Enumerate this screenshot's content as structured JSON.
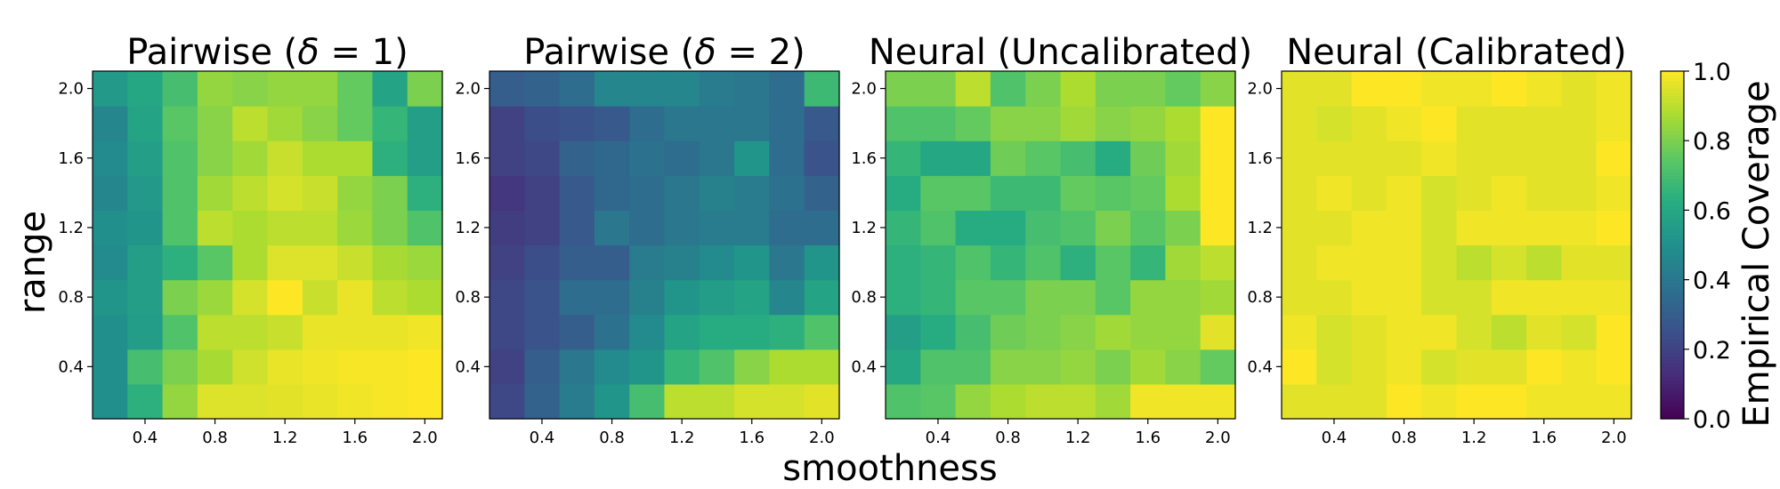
{
  "chart_data": {
    "type": "heatmap",
    "xlabel": "smoothness",
    "ylabel": "range",
    "x_ticks": [
      "0.4",
      "0.8",
      "1.2",
      "1.6",
      "2.0"
    ],
    "y_ticks": [
      "0.4",
      "0.8",
      "1.2",
      "1.6",
      "2.0"
    ],
    "grid_x": [
      0.2,
      0.4,
      0.6,
      0.8,
      1.0,
      1.2,
      1.4,
      1.6,
      1.8,
      2.0
    ],
    "grid_y": [
      0.2,
      0.4,
      0.6,
      0.8,
      1.0,
      1.2,
      1.4,
      1.6,
      1.8,
      2.0
    ],
    "colormap": "viridis",
    "colorbar": {
      "label": "Empirical Coverage",
      "range": [
        0,
        1
      ],
      "ticks": [
        "0.0",
        "0.2",
        "0.4",
        "0.6",
        "0.8",
        "1.0"
      ]
    },
    "panels": [
      {
        "title": "Pairwise (δ = 1)",
        "title_main": "Pairwise (",
        "title_symbol": "δ",
        "title_rest": " = 1)",
        "values": [
          [
            0.5,
            0.64,
            0.84,
            0.95,
            0.95,
            0.96,
            0.97,
            0.98,
            0.99,
            1.0
          ],
          [
            0.5,
            0.7,
            0.8,
            0.87,
            0.93,
            0.97,
            0.98,
            0.99,
            0.99,
            1.0
          ],
          [
            0.5,
            0.55,
            0.72,
            0.9,
            0.9,
            0.92,
            0.97,
            0.97,
            0.97,
            0.98
          ],
          [
            0.52,
            0.56,
            0.8,
            0.85,
            0.94,
            1.0,
            0.92,
            0.97,
            0.9,
            0.88
          ],
          [
            0.48,
            0.56,
            0.64,
            0.74,
            0.88,
            0.95,
            0.95,
            0.92,
            0.87,
            0.85
          ],
          [
            0.5,
            0.52,
            0.72,
            0.9,
            0.88,
            0.9,
            0.9,
            0.85,
            0.8,
            0.72
          ],
          [
            0.46,
            0.54,
            0.72,
            0.86,
            0.9,
            0.94,
            0.92,
            0.84,
            0.8,
            0.64
          ],
          [
            0.48,
            0.56,
            0.72,
            0.82,
            0.86,
            0.92,
            0.88,
            0.88,
            0.64,
            0.56
          ],
          [
            0.46,
            0.58,
            0.74,
            0.82,
            0.9,
            0.86,
            0.82,
            0.76,
            0.66,
            0.56
          ],
          [
            0.54,
            0.6,
            0.7,
            0.84,
            0.82,
            0.84,
            0.84,
            0.76,
            0.58,
            0.8
          ]
        ]
      },
      {
        "title": "Pairwise (δ = 2)",
        "title_main": "Pairwise (",
        "title_symbol": "δ",
        "title_rest": " = 2)",
        "values": [
          [
            0.22,
            0.32,
            0.42,
            0.52,
            0.7,
            0.9,
            0.9,
            0.94,
            0.94,
            0.96
          ],
          [
            0.2,
            0.3,
            0.4,
            0.48,
            0.52,
            0.66,
            0.72,
            0.82,
            0.88,
            0.88
          ],
          [
            0.22,
            0.26,
            0.3,
            0.38,
            0.48,
            0.58,
            0.62,
            0.62,
            0.64,
            0.72
          ],
          [
            0.22,
            0.26,
            0.36,
            0.36,
            0.44,
            0.52,
            0.55,
            0.58,
            0.46,
            0.58
          ],
          [
            0.2,
            0.24,
            0.3,
            0.3,
            0.42,
            0.44,
            0.48,
            0.52,
            0.4,
            0.52
          ],
          [
            0.18,
            0.2,
            0.28,
            0.4,
            0.36,
            0.4,
            0.42,
            0.42,
            0.36,
            0.36
          ],
          [
            0.16,
            0.2,
            0.28,
            0.34,
            0.36,
            0.4,
            0.44,
            0.42,
            0.38,
            0.32
          ],
          [
            0.2,
            0.22,
            0.32,
            0.34,
            0.38,
            0.36,
            0.4,
            0.52,
            0.36,
            0.26
          ],
          [
            0.2,
            0.24,
            0.26,
            0.28,
            0.36,
            0.4,
            0.4,
            0.4,
            0.36,
            0.28
          ],
          [
            0.3,
            0.32,
            0.36,
            0.46,
            0.46,
            0.46,
            0.42,
            0.4,
            0.36,
            0.68
          ]
        ]
      },
      {
        "title": "Neural (Uncalibrated)",
        "title_main": "Neural (Uncalibrated)",
        "title_symbol": "",
        "title_rest": "",
        "values": [
          [
            0.72,
            0.74,
            0.84,
            0.88,
            0.9,
            0.9,
            0.86,
            0.98,
            0.98,
            0.98
          ],
          [
            0.6,
            0.72,
            0.72,
            0.82,
            0.82,
            0.84,
            0.8,
            0.86,
            0.82,
            0.76
          ],
          [
            0.56,
            0.62,
            0.7,
            0.78,
            0.8,
            0.82,
            0.86,
            0.84,
            0.84,
            0.96
          ],
          [
            0.64,
            0.66,
            0.74,
            0.74,
            0.8,
            0.8,
            0.74,
            0.84,
            0.84,
            0.86
          ],
          [
            0.64,
            0.66,
            0.72,
            0.66,
            0.72,
            0.64,
            0.74,
            0.66,
            0.86,
            0.9
          ],
          [
            0.66,
            0.72,
            0.62,
            0.62,
            0.7,
            0.72,
            0.8,
            0.74,
            0.8,
            1.0
          ],
          [
            0.62,
            0.74,
            0.74,
            0.68,
            0.68,
            0.76,
            0.74,
            0.76,
            0.88,
            1.0
          ],
          [
            0.66,
            0.6,
            0.6,
            0.78,
            0.74,
            0.7,
            0.62,
            0.78,
            0.86,
            1.0
          ],
          [
            0.72,
            0.72,
            0.76,
            0.82,
            0.82,
            0.86,
            0.82,
            0.84,
            0.88,
            1.0
          ],
          [
            0.8,
            0.8,
            0.9,
            0.72,
            0.8,
            0.88,
            0.8,
            0.8,
            0.76,
            0.82
          ]
        ]
      },
      {
        "title": "Neural (Calibrated)",
        "title_main": "Neural (Calibrated)",
        "title_symbol": "",
        "title_rest": "",
        "values": [
          [
            0.96,
            0.96,
            0.96,
            1.0,
            0.98,
            1.0,
            1.0,
            0.98,
            0.98,
            0.98
          ],
          [
            1.0,
            0.94,
            0.96,
            0.98,
            0.94,
            0.96,
            0.96,
            1.0,
            0.98,
            1.0
          ],
          [
            0.98,
            0.94,
            0.96,
            0.98,
            0.98,
            0.94,
            0.9,
            0.96,
            0.94,
            1.0
          ],
          [
            0.96,
            0.96,
            0.98,
            0.98,
            0.94,
            0.94,
            0.98,
            0.98,
            0.98,
            0.98
          ],
          [
            0.96,
            0.98,
            0.98,
            0.98,
            0.94,
            0.9,
            0.94,
            0.9,
            0.96,
            0.96
          ],
          [
            0.96,
            0.96,
            0.98,
            0.98,
            0.94,
            0.98,
            0.98,
            0.98,
            0.98,
            1.0
          ],
          [
            0.96,
            0.98,
            0.96,
            0.98,
            0.94,
            0.96,
            0.98,
            0.96,
            0.96,
            0.98
          ],
          [
            0.96,
            0.96,
            0.96,
            0.96,
            0.98,
            0.96,
            0.96,
            0.96,
            0.96,
            1.0
          ],
          [
            0.96,
            0.94,
            0.96,
            0.98,
            1.0,
            0.96,
            0.96,
            0.96,
            0.96,
            0.98
          ],
          [
            0.96,
            0.96,
            1.0,
            1.0,
            0.98,
            0.98,
            1.0,
            0.98,
            0.96,
            0.98
          ]
        ]
      }
    ]
  }
}
